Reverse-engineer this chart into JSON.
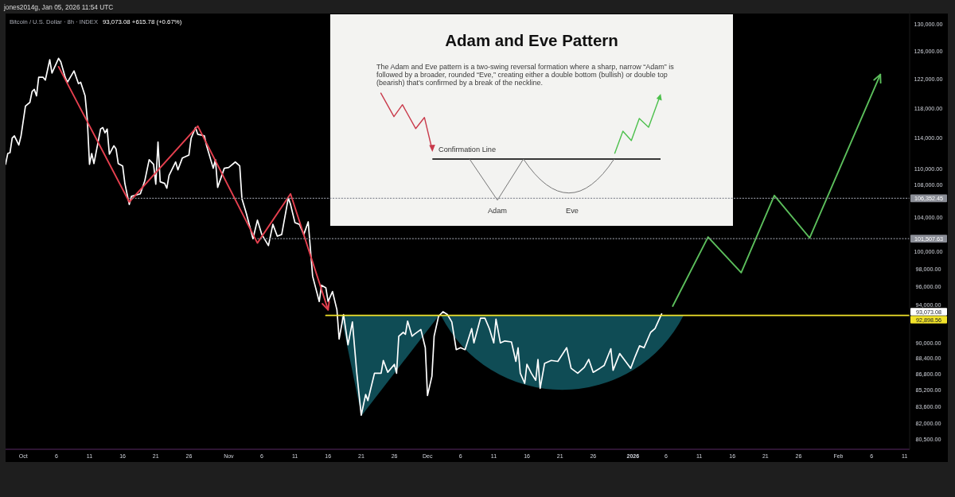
{
  "chart_data": {
    "type": "line",
    "title": "Bitcoin / U.S. Dollar · 8h · INDEX",
    "subtitle": "93,073.08 +615.78 (+0.67%)",
    "annotations": [
      "jones2014g, Jan 05, 2026 11:54 UTC",
      "Adam and Eve Pattern",
      "The Adam and Eve pattern is a two-swing reversal formation where a sharp, narrow “Adam” is followed by a broader, rounded “Eve,” creating either a double bottom (bullish) or double top (bearish) that’s confirmed by a break of the neckline.",
      "Confirmation Line",
      "Adam",
      "Eve",
      "93,073.08"
    ],
    "xlim": [
      "2025-09-28T08:00",
      "2026-02-11T18:00"
    ],
    "xticks": [
      {
        "value": "2025-10-01",
        "label": "Oct"
      },
      {
        "value": "2025-10-06",
        "label": "6"
      },
      {
        "value": "2025-10-11",
        "label": "11"
      },
      {
        "value": "2025-10-16",
        "label": "16"
      },
      {
        "value": "2025-10-21",
        "label": "21"
      },
      {
        "value": "2025-10-26",
        "label": "26"
      },
      {
        "value": "2025-11-01",
        "label": "Nov"
      },
      {
        "value": "2025-11-06",
        "label": "6"
      },
      {
        "value": "2025-11-11",
        "label": "11"
      },
      {
        "value": "2025-11-16",
        "label": "16"
      },
      {
        "value": "2025-11-21",
        "label": "21"
      },
      {
        "value": "2025-11-26",
        "label": "26"
      },
      {
        "value": "2025-12-01",
        "label": "Dec"
      },
      {
        "value": "2025-12-06",
        "label": "6"
      },
      {
        "value": "2025-12-11",
        "label": "11"
      },
      {
        "value": "2025-12-16",
        "label": "16"
      },
      {
        "value": "2025-12-21",
        "label": "21"
      },
      {
        "value": "2025-12-26",
        "label": "26"
      },
      {
        "value": "2026-01-01",
        "label": "2026"
      },
      {
        "value": "2026-01-06",
        "label": "6"
      },
      {
        "value": "2026-01-11",
        "label": "11"
      },
      {
        "value": "2026-01-16",
        "label": "16"
      },
      {
        "value": "2026-01-21",
        "label": "21"
      },
      {
        "value": "2026-01-26",
        "label": "26"
      },
      {
        "value": "2026-02-01",
        "label": "Feb"
      },
      {
        "value": "2026-02-06",
        "label": "6"
      },
      {
        "value": "2026-02-11",
        "label": "11"
      }
    ],
    "ylim": [
      79600,
      132000
    ],
    "yticks": [
      {
        "value": 130000,
        "label": "130,000.00"
      },
      {
        "value": 126000,
        "label": "126,000.00"
      },
      {
        "value": 122000,
        "label": "122,000.00"
      },
      {
        "value": 118000,
        "label": "118,000.00"
      },
      {
        "value": 114000,
        "label": "114,000.00"
      },
      {
        "value": 110000,
        "label": "110,000.00"
      },
      {
        "value": 108000,
        "label": "108,000.00"
      },
      {
        "value": 104000,
        "label": "104,000.00"
      },
      {
        "value": 100000,
        "label": "100,000.00"
      },
      {
        "value": 98000,
        "label": "98,000.00"
      },
      {
        "value": 96000,
        "label": "96,000.00"
      },
      {
        "value": 94000,
        "label": "94,000.00"
      },
      {
        "value": 90000,
        "label": "90,000.00"
      },
      {
        "value": 88400,
        "label": "88,400.00"
      },
      {
        "value": 86800,
        "label": "86,800.00"
      },
      {
        "value": 85200,
        "label": "85,200.00"
      },
      {
        "value": 83600,
        "label": "83,600.00"
      },
      {
        "value": 82000,
        "label": "82,000.00"
      },
      {
        "value": 80500,
        "label": "80,500.00"
      }
    ],
    "log": "y",
    "series": [
      {
        "type": "line",
        "color": "#ffffff",
        "x": [
          "2025-09-28T08:00",
          "2025-09-28T16:00",
          "2025-09-29T00:00",
          "2025-09-29T08:00",
          "2025-09-29T16:00",
          "2025-09-30T08:00",
          "2025-09-30T16:00",
          "2025-10-01T08:00",
          "2025-10-02T00:00",
          "2025-10-02T08:00",
          "2025-10-02T16:00",
          "2025-10-03T00:00",
          "2025-10-03T08:00",
          "2025-10-04T00:00",
          "2025-10-04T08:00",
          "2025-10-05T00:00",
          "2025-10-05T08:00",
          "2025-10-05T16:00",
          "2025-10-06T08:00",
          "2025-10-06T16:00",
          "2025-10-07T08:00",
          "2025-10-07T16:00",
          "2025-10-08T16:00",
          "2025-10-09T08:00",
          "2025-10-09T16:00",
          "2025-10-10T08:00",
          "2025-10-10T16:00",
          "2025-10-11T00:00",
          "2025-10-11T08:00",
          "2025-10-11T16:00",
          "2025-10-12T16:00",
          "2025-10-13T00:00",
          "2025-10-13T08:00",
          "2025-10-13T16:00",
          "2025-10-14T00:00",
          "2025-10-14T16:00",
          "2025-10-15T00:00",
          "2025-10-15T08:00",
          "2025-10-16T00:00",
          "2025-10-16T08:00",
          "2025-10-17T00:00",
          "2025-10-17T08:00",
          "2025-10-18T16:00",
          "2025-10-19T08:00",
          "2025-10-20T00:00",
          "2025-10-20T16:00",
          "2025-10-21T00:00",
          "2025-10-21T08:00",
          "2025-10-21T16:00",
          "2025-10-22T08:00",
          "2025-10-22T16:00",
          "2025-10-23T00:00",
          "2025-10-24T00:00",
          "2025-10-24T08:00",
          "2025-10-25T00:00",
          "2025-10-26T00:00",
          "2025-10-26T08:00",
          "2025-10-27T00:00",
          "2025-10-27T08:00",
          "2025-10-28T08:00",
          "2025-10-28T16:00",
          "2025-10-29T16:00",
          "2025-10-30T00:00",
          "2025-10-30T08:00",
          "2025-10-31T08:00",
          "2025-11-01T00:00",
          "2025-11-02T00:00",
          "2025-11-02T16:00",
          "2025-11-03T00:00",
          "2025-11-03T16:00",
          "2025-11-04T16:00",
          "2025-11-05T08:00",
          "2025-11-06T00:00",
          "2025-11-07T00:00",
          "2025-11-07T16:00",
          "2025-11-08T08:00",
          "2025-11-09T00:00",
          "2025-11-10T00:00",
          "2025-11-10T08:00",
          "2025-11-11T00:00",
          "2025-11-11T16:00",
          "2025-11-12T08:00",
          "2025-11-13T00:00",
          "2025-11-13T16:00",
          "2025-11-14T16:00",
          "2025-11-15T00:00",
          "2025-11-15T16:00",
          "2025-11-16T00:00",
          "2025-11-16T16:00",
          "2025-11-17T08:00",
          "2025-11-17T16:00",
          "2025-11-18T08:00",
          "2025-11-19T00:00",
          "2025-11-19T16:00",
          "2025-11-20T08:00",
          "2025-11-21T00:00",
          "2025-11-21T16:00",
          "2025-11-22T00:00",
          "2025-11-23T00:00",
          "2025-11-24T00:00",
          "2025-11-24T08:00",
          "2025-11-25T00:00",
          "2025-11-26T00:00",
          "2025-11-26T08:00",
          "2025-11-26T16:00",
          "2025-11-27T08:00",
          "2025-11-27T16:00",
          "2025-11-28T00:00",
          "2025-11-28T16:00",
          "2025-11-29T00:00",
          "2025-11-30T00:00",
          "2025-11-30T16:00",
          "2025-12-01T00:00",
          "2025-12-01T16:00",
          "2025-12-02T00:00",
          "2025-12-02T16:00",
          "2025-12-03T08:00",
          "2025-12-04T00:00",
          "2025-12-04T16:00",
          "2025-12-05T08:00",
          "2025-12-06T00:00",
          "2025-12-06T16:00",
          "2025-12-07T16:00",
          "2025-12-08T00:00",
          "2025-12-09T00:00",
          "2025-12-09T16:00",
          "2025-12-10T08:00",
          "2025-12-11T00:00",
          "2025-12-11T08:00",
          "2025-12-12T00:00",
          "2025-12-12T16:00",
          "2025-12-13T16:00",
          "2025-12-14T08:00",
          "2025-12-14T16:00",
          "2025-12-15T00:00",
          "2025-12-15T16:00",
          "2025-12-16T00:00",
          "2025-12-16T16:00",
          "2025-12-17T08:00",
          "2025-12-17T16:00",
          "2025-12-18T00:00",
          "2025-12-18T16:00",
          "2025-12-19T16:00",
          "2025-12-20T16:00",
          "2025-12-22T00:00",
          "2025-12-22T16:00",
          "2025-12-23T16:00",
          "2025-12-24T16:00",
          "2025-12-25T08:00",
          "2025-12-26T00:00",
          "2025-12-27T00:00",
          "2025-12-27T16:00",
          "2025-12-28T16:00",
          "2025-12-29T00:00",
          "2025-12-30T00:00",
          "2025-12-30T16:00",
          "2025-12-31T16:00",
          "2026-01-01T08:00",
          "2026-01-02T00:00",
          "2026-01-02T16:00",
          "2026-01-03T16:00",
          "2026-01-04T08:00",
          "2026-01-05T08:00"
        ],
        "values": [
          110600,
          112000,
          112100,
          114000,
          114300,
          113100,
          114300,
          118300,
          118800,
          120300,
          120600,
          119700,
          122300,
          122300,
          121900,
          124800,
          122900,
          123600,
          125000,
          124500,
          122300,
          121600,
          123200,
          121400,
          121600,
          119700,
          116500,
          110600,
          112000,
          110700,
          115200,
          115400,
          114700,
          115200,
          111900,
          113000,
          112600,
          110700,
          110400,
          108200,
          105600,
          106600,
          106900,
          108500,
          111200,
          110600,
          108100,
          113500,
          108400,
          108200,
          107600,
          109200,
          110900,
          109900,
          111400,
          111800,
          114000,
          115400,
          114500,
          114300,
          113000,
          110100,
          111200,
          107700,
          110100,
          110200,
          110900,
          110400,
          106300,
          104500,
          101500,
          103700,
          102000,
          100700,
          103200,
          101800,
          102000,
          106400,
          105600,
          103400,
          103200,
          102000,
          103500,
          97200,
          94400,
          96200,
          95900,
          94400,
          95500,
          93500,
          90400,
          93000,
          89800,
          92200,
          86900,
          82800,
          84800,
          84200,
          86900,
          86900,
          88200,
          87000,
          87800,
          86900,
          90700,
          91100,
          90900,
          92300,
          90700,
          90900,
          91400,
          89500,
          84700,
          86600,
          90700,
          92800,
          93300,
          93000,
          92200,
          89300,
          89500,
          89300,
          91500,
          90000,
          92600,
          92600,
          91500,
          90000,
          92500,
          90000,
          90200,
          90100,
          88100,
          89500,
          86900,
          85900,
          87800,
          86900,
          86200,
          88300,
          85400,
          87900,
          88200,
          88100,
          89500,
          87400,
          86900,
          87500,
          88300,
          87000,
          87400,
          87700,
          89400,
          87200,
          88900,
          88300,
          87400,
          88600,
          89700,
          89500,
          91100,
          91500,
          93073.08
        ]
      },
      {
        "type": "line",
        "color": "#e5404f",
        "x": [
          "2025-10-06T08:00",
          "2025-10-17T00:00",
          "2025-10-27T08:00",
          "2025-11-05T08:00",
          "2025-11-10T08:00",
          "2025-11-16T00:00"
        ],
        "values": [
          123800,
          105900,
          115600,
          101000,
          106900,
          93500
        ]
      },
      {
        "type": "line",
        "color": "#5cbf5c",
        "x": [
          "2026-01-07T00:00",
          "2026-01-12T08:00",
          "2026-01-17T08:00",
          "2026-01-22T08:00",
          "2026-01-27T16:00",
          "2026-02-07T08:00"
        ],
        "values": [
          93900,
          101700,
          97600,
          106700,
          101600,
          122700
        ]
      },
      {
        "type": "line",
        "color": "#f2e32b",
        "x": [
          "2025-11-15T16:00",
          "2026-02-11T18:00"
        ],
        "values": [
          92898.56,
          92898.56
        ],
        "value_labels": [
          null,
          "92,898.56"
        ]
      },
      {
        "type": "line",
        "color": "#8a8d96",
        "line_style": "dotted",
        "x": [
          "2025-10-17T00:00",
          "2026-02-11T18:00"
        ],
        "values": [
          106352.45,
          106352.45
        ],
        "value_labels": [
          null,
          "106,352.45"
        ]
      },
      {
        "type": "line",
        "color": "#8a8d96",
        "line_style": "dotted",
        "x": [
          "2025-11-05T08:00",
          "2026-02-11T18:00"
        ],
        "values": [
          101507.63,
          101507.63
        ],
        "value_labels": [
          null,
          "101,507.63"
        ]
      }
    ]
  }
}
